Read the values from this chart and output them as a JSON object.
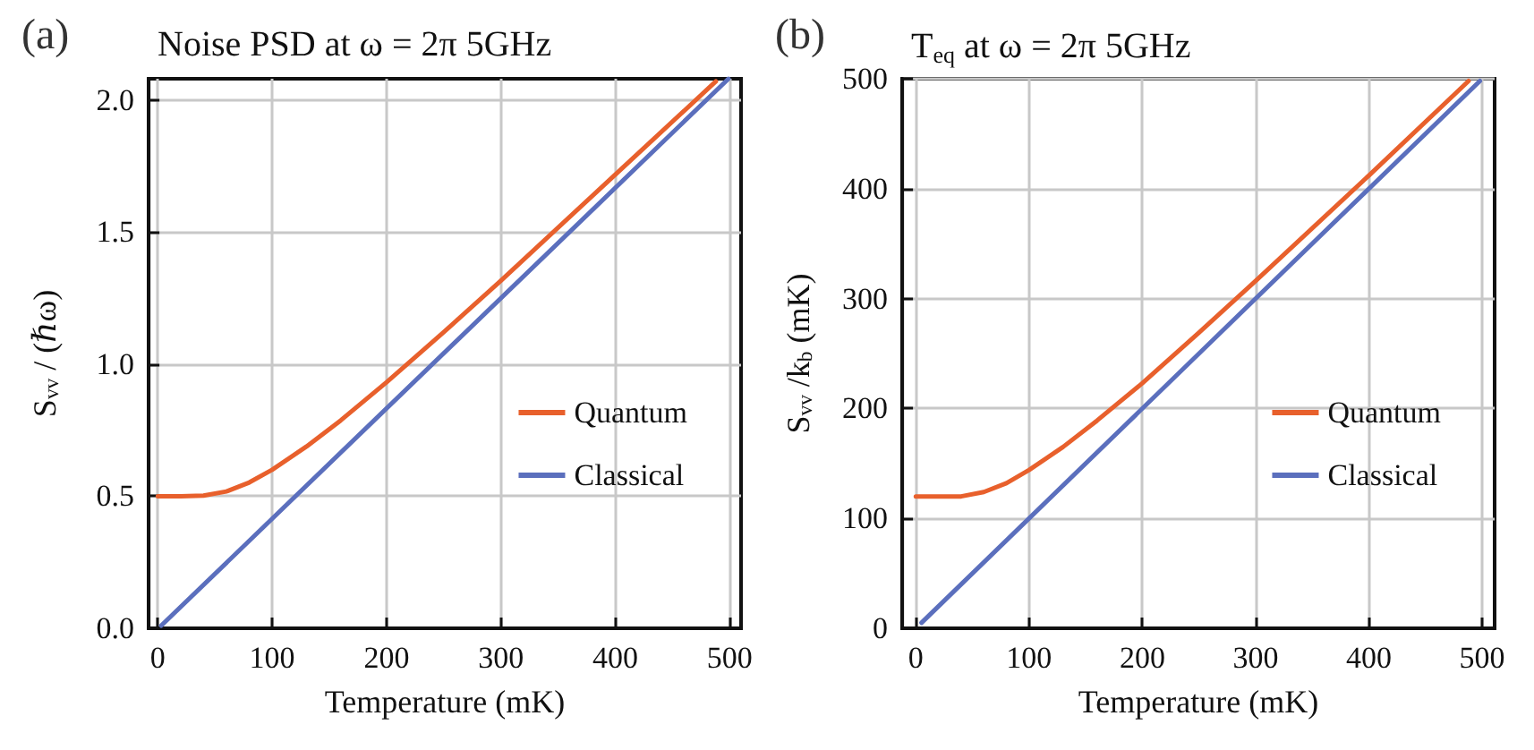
{
  "chart_data": [
    {
      "type": "line",
      "title": "Noise PSD at ω = 2π 5GHz",
      "xlabel": "Temperature (mK)",
      "ylabel": "S$_{vv}$ / (ℏω)",
      "annotations": [
        "(a)"
      ],
      "xlim": [
        -8,
        510
      ],
      "xticks": [
        0,
        100,
        200,
        300,
        400,
        500
      ],
      "ylim": [
        0,
        2.08
      ],
      "yticks": [
        {
          "value": 0,
          "label": "0.0"
        },
        0.5,
        {
          "value": 1,
          "label": "1.0"
        },
        1.5,
        {
          "value": 2,
          "label": "2.0"
        }
      ],
      "grid": true,
      "legend": "bottom right",
      "marker": "none",
      "line_style": "solid",
      "series": [
        {
          "name": "Quantum",
          "color": "#e8602c",
          "x": [
            0,
            20,
            40,
            60,
            80,
            100,
            130,
            160,
            200,
            250,
            300,
            400,
            488
          ],
          "values": [
            0.5,
            0.5,
            0.502,
            0.518,
            0.552,
            0.6,
            0.688,
            0.787,
            0.931,
            1.121,
            1.316,
            1.717,
            2.07
          ]
        },
        {
          "name": "Classical",
          "color": "#5b6fbd",
          "x": [
            3,
            499
          ],
          "values": [
            0.01,
            2.08
          ]
        }
      ]
    },
    {
      "type": "line",
      "title": "T$_{eq}$ at ω = 2π 5GHz",
      "xlabel": "Temperature (mK)",
      "ylabel": "S$_{vv}$ /k$_{b}$ (mK)",
      "annotations": [
        "(b)"
      ],
      "xlim": [
        -12,
        511
      ],
      "xticks": [
        0,
        100,
        200,
        300,
        400,
        500
      ],
      "ylim": [
        0,
        500
      ],
      "yticks": [
        0,
        100,
        200,
        300,
        400,
        500
      ],
      "grid": true,
      "legend": "bottom right",
      "marker": "none",
      "line_style": "solid",
      "series": [
        {
          "name": "Quantum",
          "color": "#e8602c",
          "x": [
            0,
            20,
            40,
            60,
            80,
            100,
            130,
            160,
            200,
            250,
            300,
            400,
            488
          ],
          "values": [
            120,
            120,
            120,
            124,
            132,
            144,
            165,
            189,
            223,
            269,
            316,
            412,
            498
          ]
        },
        {
          "name": "Classical",
          "color": "#5b6fbd",
          "x": [
            5,
            498
          ],
          "values": [
            5,
            498
          ]
        }
      ]
    }
  ]
}
